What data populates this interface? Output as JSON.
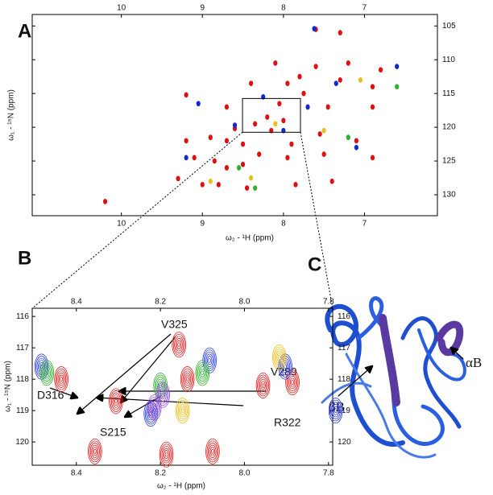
{
  "panels": [
    "A",
    "B",
    "C"
  ],
  "chart_data": [
    {
      "type": "scatter",
      "xlabel": "ω₂ - ¹H (ppm)",
      "ylabel": "ω₁ - ¹⁵N (ppm)",
      "xlim": [
        11.1,
        6.1
      ],
      "ylim": [
        133.1,
        103.3
      ],
      "xticks": [
        10,
        9,
        8,
        7
      ],
      "yticks": [
        105,
        110,
        115,
        120,
        125,
        130
      ],
      "series": [
        {
          "color": "#e01010",
          "x": [
            10.2,
            9.2,
            9.2,
            9.1,
            9.0,
            9.3,
            8.9,
            8.85,
            8.8,
            8.7,
            8.7,
            8.6,
            8.5,
            8.5,
            8.45,
            8.4,
            8.3,
            8.2,
            8.1,
            8.05,
            8.0,
            7.95,
            7.9,
            7.85,
            7.8,
            7.75,
            7.6,
            7.6,
            7.55,
            7.5,
            7.4,
            7.3,
            7.3,
            7.2,
            7.1,
            6.9,
            6.9,
            6.8,
            6.9,
            7.45,
            8.35,
            8.15,
            7.95,
            8.7
          ],
          "y": [
            131,
            115.2,
            122,
            124.5,
            128.5,
            127.6,
            121.5,
            125,
            128.5,
            122,
            126,
            120.2,
            122.5,
            125.5,
            129,
            113.5,
            124,
            118.5,
            110.5,
            116.5,
            119,
            124.5,
            122.5,
            128.5,
            112.5,
            115,
            105.5,
            111,
            121,
            124,
            128,
            106,
            113,
            110.5,
            122,
            114,
            117,
            111.5,
            124.5,
            117,
            119.5,
            120.5,
            113.5,
            117
          ]
        },
        {
          "color": "#1428d0",
          "x": [
            9.05,
            8.6,
            7.7,
            7.1,
            7.62,
            8.25,
            9.2,
            6.6,
            8.0,
            7.35
          ],
          "y": [
            116.5,
            119.7,
            117,
            123,
            105.4,
            115.5,
            124.5,
            111,
            120.5,
            113.5
          ]
        },
        {
          "color": "#e8c020",
          "x": [
            8.4,
            7.05,
            8.9,
            7.5,
            8.1
          ],
          "y": [
            127.5,
            113,
            128,
            120.5,
            119.5
          ]
        },
        {
          "color": "#30b030",
          "x": [
            6.6,
            8.35,
            7.2,
            8.55
          ],
          "y": [
            114,
            129,
            121.5,
            126
          ]
        }
      ]
    },
    {
      "type": "scatter",
      "xlabel": "ω₂ - ¹H (ppm)",
      "ylabel": "ω₁ - ¹⁵N (ppm)",
      "xlim": [
        8.505,
        7.79
      ],
      "ylim": [
        120.74,
        115.74
      ],
      "xticks": [
        8.4,
        8.2,
        {
          "value": 8,
          "label": "8.0"
        },
        7.8
      ],
      "yticks": [
        116,
        117,
        118,
        119,
        120
      ],
      "series": [
        {
          "color": "#e02020",
          "x": [
            8.43,
            8.3,
            8.13,
            8.15,
            7.95,
            7.88,
            8.35,
            8.07,
            8.18
          ],
          "y": [
            118.0,
            118.7,
            118.0,
            116.9,
            118.2,
            118.1,
            120.3,
            120.3,
            120.4
          ]
        },
        {
          "color": "#3040e0",
          "x": [
            8.48,
            8.08,
            7.78,
            7.9,
            8.22
          ],
          "y": [
            117.6,
            117.4,
            119.0,
            117.6,
            119.1
          ]
        },
        {
          "color": "#30b030",
          "x": [
            8.47,
            8.2,
            8.1
          ],
          "y": [
            117.8,
            118.2,
            117.8
          ]
        },
        {
          "color": "#e8c020",
          "x": [
            8.15,
            7.92
          ],
          "y": [
            119.0,
            117.3
          ]
        },
        {
          "color": "#9050d0",
          "x": [
            8.22,
            8.2
          ],
          "y": [
            118.9,
            118.5
          ]
        }
      ]
    }
  ],
  "annotations": [
    "D316",
    "V325",
    "V289",
    "S215",
    "R322"
  ],
  "structure_labels": [
    "βB",
    "αB"
  ]
}
